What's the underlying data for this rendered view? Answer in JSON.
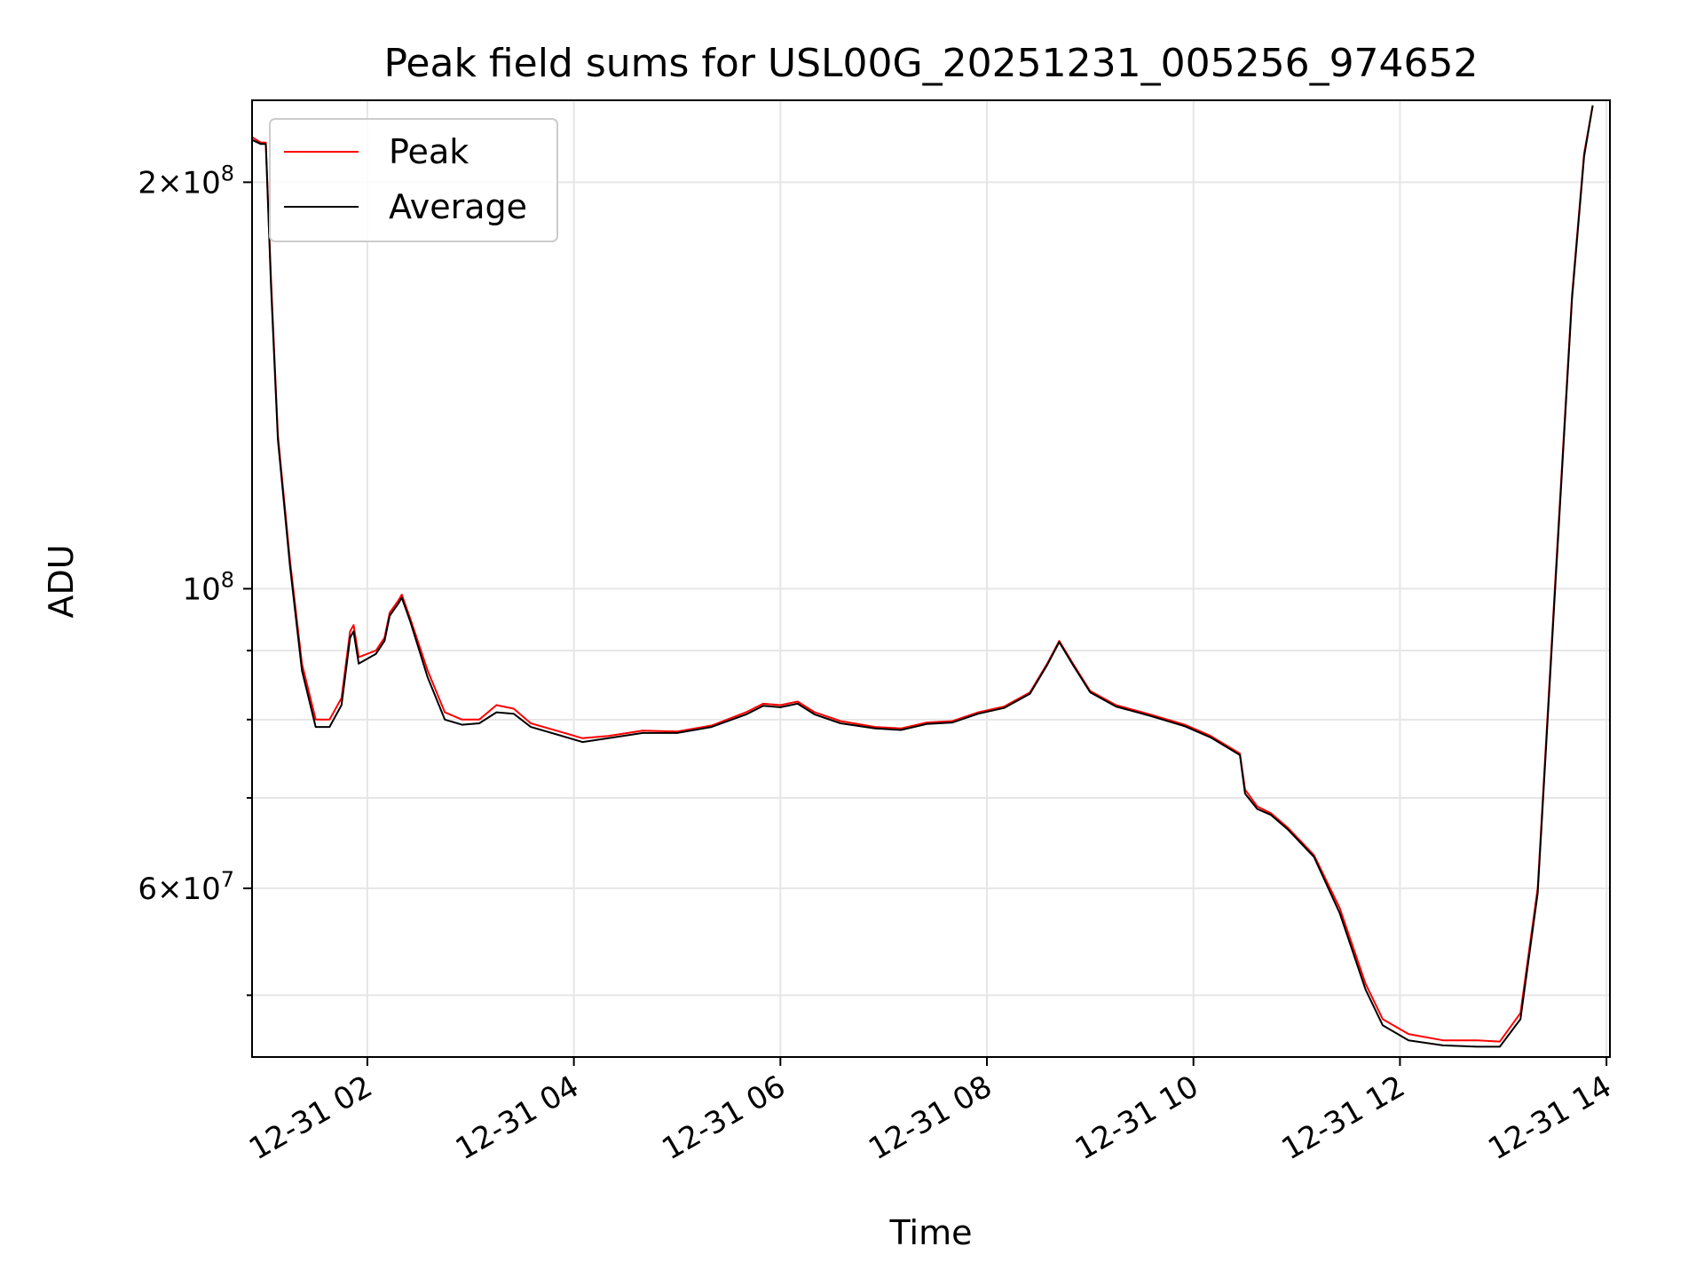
{
  "chart_data": {
    "type": "line",
    "title": "Peak field sums for USL00G_20251231_005256_974652",
    "xlabel": "Time",
    "ylabel": "ADU",
    "yscale": "log",
    "xlim": [
      "12-31 00:53",
      "12-31 14:02"
    ],
    "ylim": [
      45000000,
      230000000
    ],
    "x_ticks": [
      "12-31 02",
      "12-31 04",
      "12-31 06",
      "12-31 08",
      "12-31 10",
      "12-31 12",
      "12-31 14"
    ],
    "y_tick_labels": [
      {
        "value": 200000000,
        "mantissa": "2",
        "exponent": "8"
      },
      {
        "value": 100000000,
        "mantissa": "",
        "exponent": "8"
      },
      {
        "value": 60000000,
        "mantissa": "6",
        "exponent": "7"
      }
    ],
    "grid": true,
    "legend_position": "top-left",
    "colors": {
      "peak": "#ff0000",
      "average": "#000000",
      "grid": "#e6e6e6"
    },
    "series": [
      {
        "name": "Peak",
        "color": "#ff0000",
        "points": [
          [
            "12-31 00:53",
            216000000
          ],
          [
            "12-31 00:58",
            214000000
          ],
          [
            "12-31 01:01",
            214000000
          ],
          [
            "12-31 01:04",
            170000000
          ],
          [
            "12-31 01:08",
            130000000
          ],
          [
            "12-31 01:15",
            105000000
          ],
          [
            "12-31 01:22",
            88000000
          ],
          [
            "12-31 01:30",
            80000000
          ],
          [
            "12-31 01:38",
            80000000
          ],
          [
            "12-31 01:45",
            83000000
          ],
          [
            "12-31 01:50",
            93000000
          ],
          [
            "12-31 01:52",
            94000000
          ],
          [
            "12-31 01:55",
            89000000
          ],
          [
            "12-31 02:05",
            90000000
          ],
          [
            "12-31 02:10",
            92000000
          ],
          [
            "12-31 02:13",
            96000000
          ],
          [
            "12-31 02:18",
            98000000
          ],
          [
            "12-31 02:20",
            99000000
          ],
          [
            "12-31 02:25",
            95000000
          ],
          [
            "12-31 02:35",
            87000000
          ],
          [
            "12-31 02:45",
            81000000
          ],
          [
            "12-31 02:55",
            80000000
          ],
          [
            "12-31 03:05",
            80000000
          ],
          [
            "12-31 03:15",
            82000000
          ],
          [
            "12-31 03:25",
            81500000
          ],
          [
            "12-31 03:35",
            79500000
          ],
          [
            "12-31 03:50",
            78500000
          ],
          [
            "12-31 04:05",
            77500000
          ],
          [
            "12-31 04:20",
            77800000
          ],
          [
            "12-31 04:40",
            78500000
          ],
          [
            "12-31 05:00",
            78400000
          ],
          [
            "12-31 05:20",
            79200000
          ],
          [
            "12-31 05:40",
            81000000
          ],
          [
            "12-31 05:50",
            82200000
          ],
          [
            "12-31 06:00",
            82000000
          ],
          [
            "12-31 06:10",
            82500000
          ],
          [
            "12-31 06:20",
            81000000
          ],
          [
            "12-31 06:35",
            79800000
          ],
          [
            "12-31 06:55",
            79000000
          ],
          [
            "12-31 07:10",
            78800000
          ],
          [
            "12-31 07:25",
            79600000
          ],
          [
            "12-31 07:40",
            79800000
          ],
          [
            "12-31 07:55",
            81000000
          ],
          [
            "12-31 08:10",
            81800000
          ],
          [
            "12-31 08:25",
            83800000
          ],
          [
            "12-31 08:35",
            88000000
          ],
          [
            "12-31 08:42",
            91500000
          ],
          [
            "12-31 08:50",
            88000000
          ],
          [
            "12-31 09:00",
            84000000
          ],
          [
            "12-31 09:15",
            82000000
          ],
          [
            "12-31 09:35",
            80700000
          ],
          [
            "12-31 09:55",
            79300000
          ],
          [
            "12-31 10:10",
            77800000
          ],
          [
            "12-31 10:27",
            75500000
          ],
          [
            "12-31 10:30",
            71000000
          ],
          [
            "12-31 10:37",
            69000000
          ],
          [
            "12-31 10:45",
            68200000
          ],
          [
            "12-31 10:55",
            66500000
          ],
          [
            "12-31 11:10",
            63500000
          ],
          [
            "12-31 11:25",
            58000000
          ],
          [
            "12-31 11:40",
            51000000
          ],
          [
            "12-31 11:50",
            48000000
          ],
          [
            "12-31 12:05",
            46800000
          ],
          [
            "12-31 12:25",
            46300000
          ],
          [
            "12-31 12:45",
            46300000
          ],
          [
            "12-31 12:58",
            46200000
          ],
          [
            "12-31 13:10",
            48500000
          ],
          [
            "12-31 13:20",
            60000000
          ],
          [
            "12-31 13:30",
            100000000
          ],
          [
            "12-31 13:40",
            165000000
          ],
          [
            "12-31 13:47",
            210000000
          ],
          [
            "12-31 13:52",
            228000000
          ]
        ]
      },
      {
        "name": "Average",
        "color": "#000000",
        "points": [
          [
            "12-31 00:53",
            215000000
          ],
          [
            "12-31 00:58",
            213500000
          ],
          [
            "12-31 01:01",
            213500000
          ],
          [
            "12-31 01:04",
            168000000
          ],
          [
            "12-31 01:08",
            129000000
          ],
          [
            "12-31 01:15",
            104000000
          ],
          [
            "12-31 01:22",
            87000000
          ],
          [
            "12-31 01:30",
            79000000
          ],
          [
            "12-31 01:38",
            79000000
          ],
          [
            "12-31 01:45",
            82000000
          ],
          [
            "12-31 01:50",
            92000000
          ],
          [
            "12-31 01:52",
            93000000
          ],
          [
            "12-31 01:55",
            88000000
          ],
          [
            "12-31 02:05",
            89500000
          ],
          [
            "12-31 02:10",
            91500000
          ],
          [
            "12-31 02:13",
            95500000
          ],
          [
            "12-31 02:18",
            97500000
          ],
          [
            "12-31 02:20",
            98500000
          ],
          [
            "12-31 02:25",
            94500000
          ],
          [
            "12-31 02:35",
            86000000
          ],
          [
            "12-31 02:45",
            80000000
          ],
          [
            "12-31 02:55",
            79300000
          ],
          [
            "12-31 03:05",
            79500000
          ],
          [
            "12-31 03:15",
            81000000
          ],
          [
            "12-31 03:25",
            80800000
          ],
          [
            "12-31 03:35",
            79000000
          ],
          [
            "12-31 03:50",
            78000000
          ],
          [
            "12-31 04:05",
            77000000
          ],
          [
            "12-31 04:20",
            77500000
          ],
          [
            "12-31 04:40",
            78200000
          ],
          [
            "12-31 05:00",
            78200000
          ],
          [
            "12-31 05:20",
            79000000
          ],
          [
            "12-31 05:40",
            80700000
          ],
          [
            "12-31 05:50",
            81900000
          ],
          [
            "12-31 06:00",
            81700000
          ],
          [
            "12-31 06:10",
            82200000
          ],
          [
            "12-31 06:20",
            80700000
          ],
          [
            "12-31 06:35",
            79500000
          ],
          [
            "12-31 06:55",
            78800000
          ],
          [
            "12-31 07:10",
            78600000
          ],
          [
            "12-31 07:25",
            79400000
          ],
          [
            "12-31 07:40",
            79600000
          ],
          [
            "12-31 07:55",
            80800000
          ],
          [
            "12-31 08:10",
            81600000
          ],
          [
            "12-31 08:25",
            83600000
          ],
          [
            "12-31 08:35",
            87800000
          ],
          [
            "12-31 08:42",
            91300000
          ],
          [
            "12-31 08:50",
            87800000
          ],
          [
            "12-31 09:00",
            83800000
          ],
          [
            "12-31 09:15",
            81800000
          ],
          [
            "12-31 09:35",
            80500000
          ],
          [
            "12-31 09:55",
            79100000
          ],
          [
            "12-31 10:10",
            77600000
          ],
          [
            "12-31 10:27",
            75300000
          ],
          [
            "12-31 10:30",
            70500000
          ],
          [
            "12-31 10:37",
            68700000
          ],
          [
            "12-31 10:45",
            68000000
          ],
          [
            "12-31 10:55",
            66300000
          ],
          [
            "12-31 11:10",
            63300000
          ],
          [
            "12-31 11:25",
            57500000
          ],
          [
            "12-31 11:40",
            50500000
          ],
          [
            "12-31 11:50",
            47500000
          ],
          [
            "12-31 12:05",
            46300000
          ],
          [
            "12-31 12:25",
            45900000
          ],
          [
            "12-31 12:45",
            45800000
          ],
          [
            "12-31 12:58",
            45800000
          ],
          [
            "12-31 13:10",
            48000000
          ],
          [
            "12-31 13:20",
            59500000
          ],
          [
            "12-31 13:30",
            99000000
          ],
          [
            "12-31 13:40",
            164000000
          ],
          [
            "12-31 13:47",
            209000000
          ],
          [
            "12-31 13:52",
            228000000
          ]
        ]
      }
    ]
  }
}
